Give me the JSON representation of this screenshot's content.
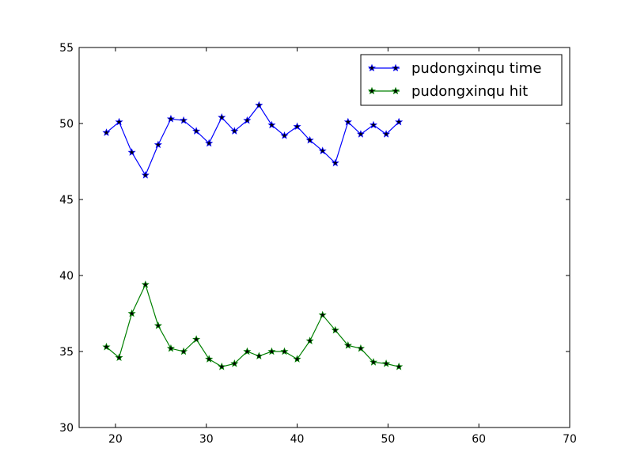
{
  "chart_data": {
    "type": "line",
    "title": "",
    "xlabel": "",
    "ylabel": "",
    "xlim": [
      16,
      70
    ],
    "ylim": [
      30,
      55
    ],
    "xticks": [
      20,
      30,
      40,
      50,
      60,
      70
    ],
    "yticks": [
      30,
      35,
      40,
      45,
      50,
      55
    ],
    "grid": false,
    "legend_position": "top-right",
    "x": [
      19,
      20.4,
      21.8,
      23.3,
      24.7,
      26.1,
      27.5,
      28.9,
      30.3,
      31.7,
      33.1,
      34.5,
      35.8,
      37.2,
      38.6,
      40,
      41.4,
      42.8,
      44.2,
      45.6,
      47,
      48.4,
      49.8,
      51.2
    ],
    "series": [
      {
        "name": "pudongxinqu time",
        "color": "#0000ff",
        "marker": "star",
        "values": [
          49.4,
          50.1,
          48.1,
          46.6,
          48.6,
          50.3,
          50.2,
          49.5,
          48.7,
          50.4,
          49.5,
          50.2,
          51.2,
          49.9,
          49.2,
          49.8,
          48.9,
          48.2,
          47.4,
          50.1,
          49.3,
          49.9,
          49.3,
          50.1
        ]
      },
      {
        "name": "pudongxinqu hit",
        "color": "#008000",
        "marker": "star",
        "values": [
          35.3,
          34.6,
          37.5,
          39.4,
          36.7,
          35.2,
          35.0,
          35.8,
          34.5,
          34.0,
          34.2,
          35.0,
          34.7,
          35.0,
          35.0,
          34.5,
          35.7,
          37.4,
          36.4,
          35.4,
          35.2,
          34.3,
          34.2,
          34.0
        ]
      }
    ]
  }
}
